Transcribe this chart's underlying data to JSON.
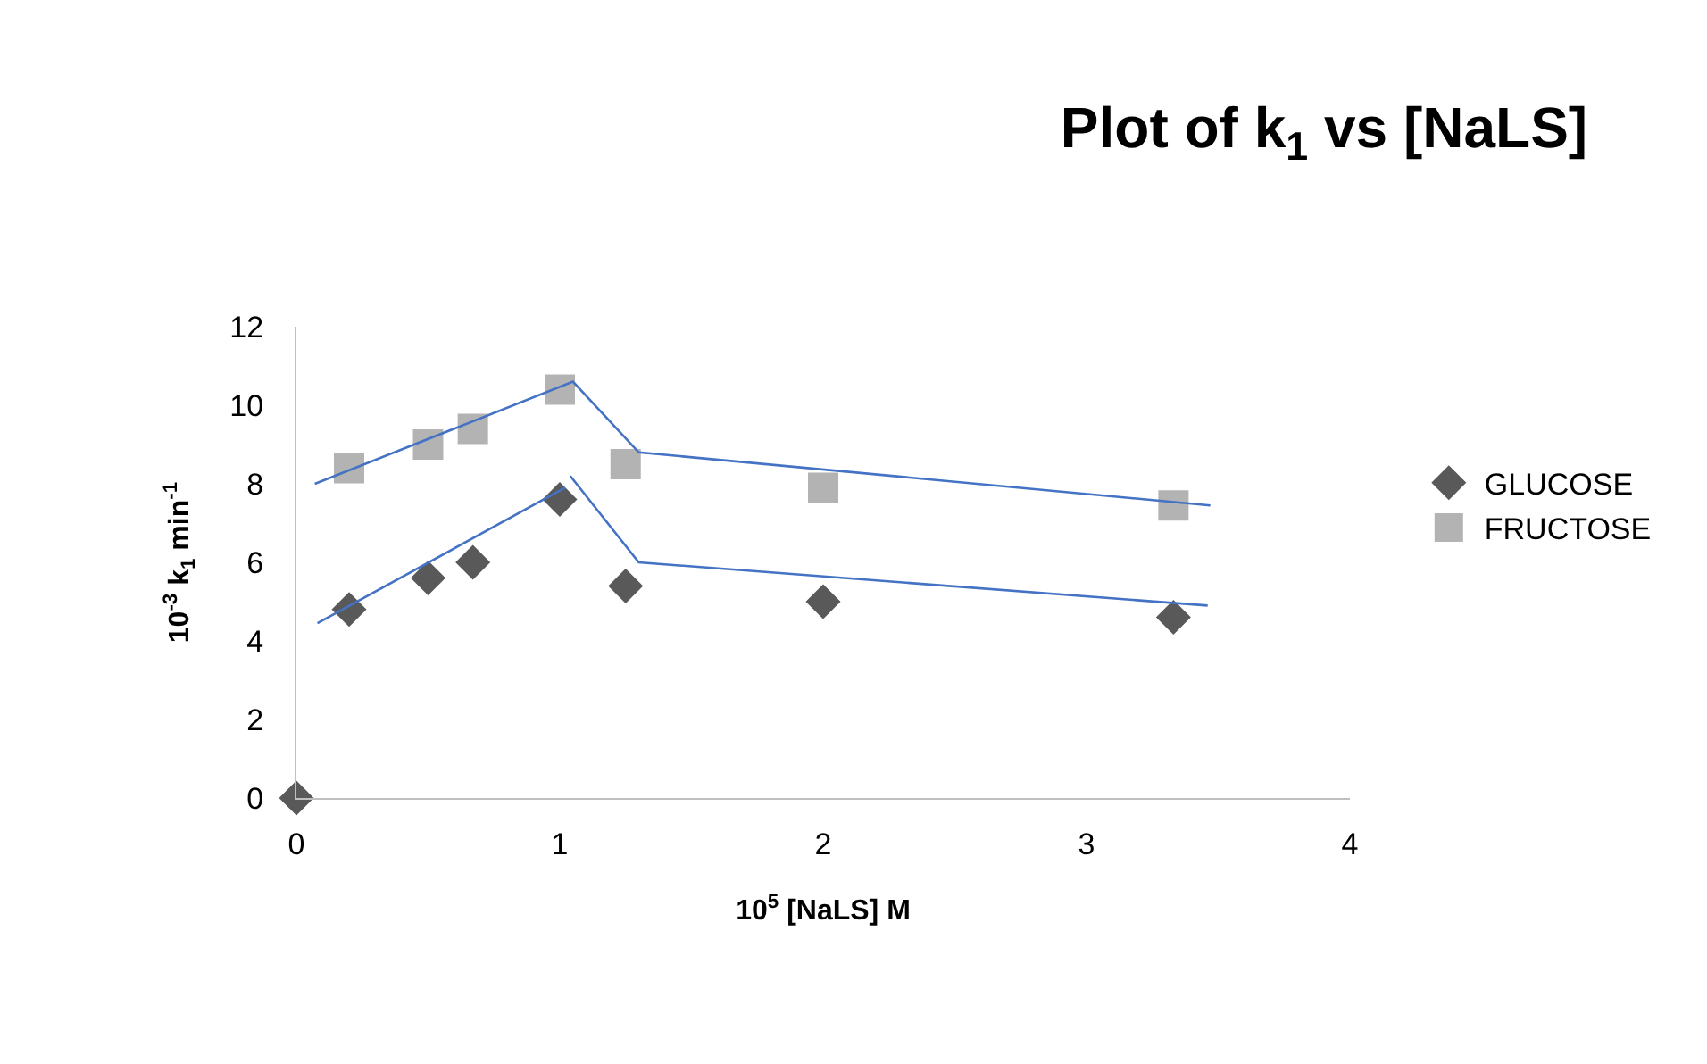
{
  "chart_data": {
    "type": "scatter",
    "title": "Plot of k$_{1}$ vs [NaLS]",
    "xlabel": "10$^{5}$ [NaLS] M",
    "ylabel": "10$^{-3}$ k$_{1}$ min$^{-1}$",
    "xlim": [
      0,
      4
    ],
    "xticks": [
      0,
      1,
      2,
      3,
      4
    ],
    "ylim": [
      0,
      12
    ],
    "yticks": [
      0,
      2,
      4,
      6,
      8,
      10,
      12
    ],
    "legend": "right",
    "series": [
      {
        "name": "GLUCOSE",
        "marker": "diamond",
        "color": "#595959",
        "x": [
          0,
          0.2,
          0.5,
          0.67,
          1.0,
          1.25,
          2.0,
          3.33
        ],
        "values": [
          0,
          4.8,
          5.6,
          6.0,
          7.6,
          5.4,
          5.0,
          4.6
        ]
      },
      {
        "name": "FRUCTOSE",
        "marker": "square",
        "color": "#b3b3b3",
        "x": [
          0.2,
          0.5,
          0.67,
          1.0,
          1.25,
          2.0,
          3.33
        ],
        "values": [
          8.4,
          9.0,
          9.4,
          10.4,
          8.5,
          7.9,
          7.45
        ]
      },
      {
        "type": "line",
        "marker": "none",
        "line_style": "solid",
        "color": "#4472c4",
        "x": [
          0.07,
          1.05,
          1.3,
          3.47
        ],
        "values": [
          8.0,
          10.6,
          8.8,
          7.45
        ]
      },
      {
        "type": "line",
        "marker": "none",
        "line_style": "solid",
        "color": "#4472c4",
        "x": [
          0.08,
          1.02
        ],
        "values": [
          4.45,
          7.9
        ]
      },
      {
        "type": "line",
        "marker": "none",
        "line_style": "solid",
        "color": "#4472c4",
        "x": [
          1.04,
          1.3,
          3.46
        ],
        "values": [
          8.2,
          6.0,
          4.9
        ]
      }
    ]
  }
}
